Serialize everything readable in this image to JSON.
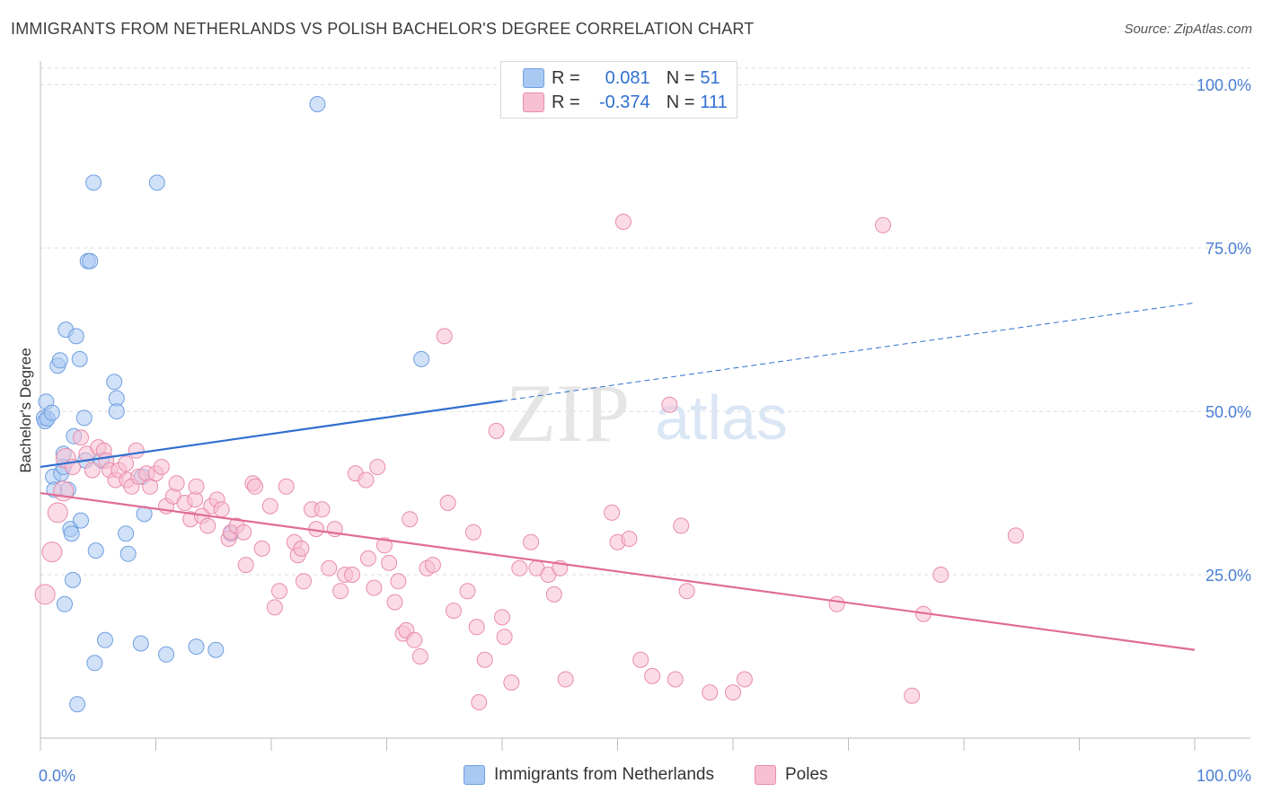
{
  "title": "IMMIGRANTS FROM NETHERLANDS VS POLISH BACHELOR'S DEGREE CORRELATION CHART",
  "source": "Source: ZipAtlas.com",
  "watermark": {
    "zip": "ZIP",
    "atlas": "atlas"
  },
  "legend_top": {
    "rows": [
      {
        "r_label": "R =",
        "r_value": "0.081",
        "n_label": "N =",
        "n_value": "51",
        "color": "#a9c8f2",
        "border": "#6f9fe0"
      },
      {
        "r_label": "R =",
        "r_value": "-0.374",
        "n_label": "N =",
        "n_value": "111",
        "color": "#f7bfd2",
        "border": "#e98cab"
      }
    ]
  },
  "legend_bottom": [
    {
      "label": "Immigrants from Netherlands",
      "color": "#a9c8f2",
      "border": "#6f9fe0"
    },
    {
      "label": "Poles",
      "color": "#f7bfd2",
      "border": "#e98cab"
    }
  ],
  "chart_data": {
    "type": "scatter",
    "title": "IMMIGRANTS FROM NETHERLANDS VS POLISH BACHELOR'S DEGREE CORRELATION CHART",
    "xlabel": "",
    "ylabel": "Bachelor's Degree",
    "xlim": [
      0,
      100
    ],
    "ylim": [
      0,
      102.5
    ],
    "x_tick_labels": [
      "0.0%",
      "100.0%"
    ],
    "y_ticks": [
      25,
      50,
      75,
      100
    ],
    "y_tick_labels": [
      "25.0%",
      "50.0%",
      "75.0%",
      "100.0%"
    ],
    "grid": true,
    "legend_placement": "bottom",
    "series": [
      {
        "name": "Immigrants from Netherlands",
        "color": "#a9c8f2",
        "stroke": "#6f9fe0",
        "line_color": "#2f6fd0",
        "trend": {
          "x0": 0,
          "y0": 41.5,
          "x1": 40,
          "y1": 51.6,
          "x_dash_end": 100,
          "y_dash_end": 66.6
        },
        "points": [
          [
            0.3,
            49
          ],
          [
            0.4,
            48.5
          ],
          [
            0.5,
            51.5
          ],
          [
            0.6,
            48.9
          ],
          [
            1.0,
            49.8
          ],
          [
            1.1,
            40
          ],
          [
            1.2,
            38
          ],
          [
            1.5,
            57
          ],
          [
            1.7,
            57.8
          ],
          [
            1.8,
            40.5
          ],
          [
            2.0,
            43.5
          ],
          [
            2.0,
            41.5
          ],
          [
            2.1,
            20.5
          ],
          [
            2.2,
            62.5
          ],
          [
            2.4,
            38
          ],
          [
            2.6,
            32
          ],
          [
            2.7,
            31.3
          ],
          [
            2.8,
            24.2
          ],
          [
            2.9,
            46.2
          ],
          [
            3.1,
            61.5
          ],
          [
            3.2,
            5.2
          ],
          [
            3.4,
            58
          ],
          [
            3.5,
            33.3
          ],
          [
            3.8,
            49
          ],
          [
            3.9,
            42.5
          ],
          [
            4.1,
            73
          ],
          [
            4.3,
            73
          ],
          [
            4.6,
            85
          ],
          [
            4.7,
            11.5
          ],
          [
            4.8,
            28.7
          ],
          [
            5.3,
            42.5
          ],
          [
            5.6,
            15
          ],
          [
            6.4,
            54.5
          ],
          [
            6.6,
            52
          ],
          [
            6.6,
            50
          ],
          [
            7.4,
            31.3
          ],
          [
            7.6,
            28.2
          ],
          [
            8.7,
            14.5
          ],
          [
            8.8,
            40
          ],
          [
            9.0,
            34.3
          ],
          [
            10.1,
            85
          ],
          [
            10.9,
            12.8
          ],
          [
            13.5,
            14
          ],
          [
            15.2,
            13.5
          ],
          [
            16.5,
            31.3
          ],
          [
            24.0,
            97
          ],
          [
            33.0,
            58
          ]
        ]
      },
      {
        "name": "Poles",
        "color": "#f7bfd2",
        "stroke": "#e98cab",
        "line_color": "#e06c96",
        "trend": {
          "x0": 0,
          "y0": 37.5,
          "x1": 100,
          "y1": 13.5
        },
        "points": [
          [
            0.4,
            22
          ],
          [
            1.0,
            28.5
          ],
          [
            1.5,
            34.5
          ],
          [
            2.0,
            37.8
          ],
          [
            2.2,
            42.8
          ],
          [
            2.8,
            41.5
          ],
          [
            3.5,
            46
          ],
          [
            4.0,
            43.5
          ],
          [
            4.5,
            41
          ],
          [
            5.0,
            44.5
          ],
          [
            5.5,
            44
          ],
          [
            5.7,
            42.5
          ],
          [
            6.0,
            41
          ],
          [
            6.5,
            39.5
          ],
          [
            6.8,
            41
          ],
          [
            7.4,
            42
          ],
          [
            7.5,
            39.5
          ],
          [
            7.9,
            38.5
          ],
          [
            8.3,
            44
          ],
          [
            8.5,
            40
          ],
          [
            9.2,
            40.5
          ],
          [
            9.5,
            38.5
          ],
          [
            10.0,
            40.5
          ],
          [
            10.5,
            41.5
          ],
          [
            10.9,
            35.5
          ],
          [
            11.5,
            37
          ],
          [
            11.8,
            39
          ],
          [
            12.5,
            36
          ],
          [
            13.0,
            33.5
          ],
          [
            13.4,
            36.5
          ],
          [
            13.5,
            38.5
          ],
          [
            14.0,
            34
          ],
          [
            14.5,
            32.5
          ],
          [
            14.8,
            35.5
          ],
          [
            15.3,
            36.5
          ],
          [
            15.7,
            35
          ],
          [
            16.3,
            30.5
          ],
          [
            16.5,
            31.5
          ],
          [
            17.0,
            32.5
          ],
          [
            17.6,
            31.5
          ],
          [
            17.8,
            26.5
          ],
          [
            18.4,
            39
          ],
          [
            18.6,
            38.5
          ],
          [
            19.2,
            29
          ],
          [
            19.9,
            35.5
          ],
          [
            20.3,
            20
          ],
          [
            20.7,
            22.5
          ],
          [
            21.3,
            38.5
          ],
          [
            22.0,
            30
          ],
          [
            22.3,
            28
          ],
          [
            22.6,
            29
          ],
          [
            22.8,
            24
          ],
          [
            23.5,
            35
          ],
          [
            23.9,
            32
          ],
          [
            24.4,
            35
          ],
          [
            25.0,
            26
          ],
          [
            25.5,
            32
          ],
          [
            26.0,
            22.5
          ],
          [
            26.4,
            25
          ],
          [
            27.0,
            25
          ],
          [
            27.3,
            40.5
          ],
          [
            28.2,
            39.5
          ],
          [
            28.4,
            27.5
          ],
          [
            28.9,
            23
          ],
          [
            29.2,
            41.5
          ],
          [
            29.8,
            29.5
          ],
          [
            30.2,
            26.8
          ],
          [
            30.7,
            20.8
          ],
          [
            31.0,
            24
          ],
          [
            31.4,
            16
          ],
          [
            31.7,
            16.5
          ],
          [
            32.0,
            33.5
          ],
          [
            32.4,
            15
          ],
          [
            32.9,
            12.5
          ],
          [
            33.5,
            26
          ],
          [
            34.0,
            26.5
          ],
          [
            35.0,
            61.5
          ],
          [
            35.3,
            36
          ],
          [
            35.8,
            19.5
          ],
          [
            37.0,
            22.5
          ],
          [
            37.5,
            31.5
          ],
          [
            37.8,
            17
          ],
          [
            38.0,
            5.5
          ],
          [
            38.5,
            12
          ],
          [
            39.5,
            47
          ],
          [
            40.0,
            18.5
          ],
          [
            40.2,
            15.5
          ],
          [
            40.8,
            8.5
          ],
          [
            41.5,
            26
          ],
          [
            42.5,
            30
          ],
          [
            43.0,
            26
          ],
          [
            44.0,
            25
          ],
          [
            44.5,
            22
          ],
          [
            45.0,
            26
          ],
          [
            45.5,
            9
          ],
          [
            49.5,
            34.5
          ],
          [
            50.0,
            30
          ],
          [
            50.5,
            79
          ],
          [
            51.0,
            30.5
          ],
          [
            52.0,
            12
          ],
          [
            53.0,
            9.5
          ],
          [
            54.5,
            51
          ],
          [
            55.0,
            9
          ],
          [
            55.5,
            32.5
          ],
          [
            56.0,
            22.5
          ],
          [
            58.0,
            7
          ],
          [
            60.0,
            7
          ],
          [
            61.0,
            9
          ],
          [
            69.0,
            20.5
          ],
          [
            73.0,
            78.5
          ],
          [
            75.5,
            6.5
          ],
          [
            76.5,
            19
          ],
          [
            78.0,
            25
          ],
          [
            84.5,
            31
          ]
        ]
      }
    ]
  }
}
